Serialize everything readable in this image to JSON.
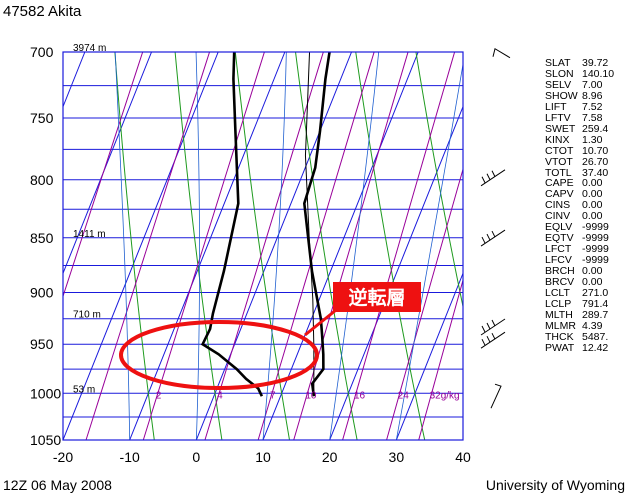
{
  "station_title": "47582  Akita",
  "footer_left": "12Z 06 May 2008",
  "footer_right": "University of Wyoming",
  "annotation_label": "逆転層",
  "colors": {
    "grid": "#1a1adc",
    "mixing_ratio": "#990099",
    "dry_adiabat": "#1e9a1e",
    "moist_adiabat": "#2060d0",
    "annotation": "#ee1111"
  },
  "chart_data": {
    "type": "line",
    "subtype": "skew-T log-P sounding",
    "y_ticks": [
      "700",
      "750",
      "800",
      "850",
      "900",
      "950",
      "1000",
      "1050"
    ],
    "x_ticks": [
      "-20",
      "-10",
      "0",
      "10",
      "20",
      "30",
      "40"
    ],
    "pressure_range_hPa": [
      1050,
      700
    ],
    "temperature_range_C": [
      -20,
      40
    ],
    "height_labels": [
      {
        "label": "3974 m",
        "pressure": 700
      },
      {
        "label": "1411 m",
        "pressure": 850
      },
      {
        "label": "710 m",
        "pressure": 925
      },
      {
        "label": "53 m",
        "pressure": 1000
      }
    ],
    "mixing_ratio_labels": [
      "2",
      "4",
      "7",
      "10",
      "16",
      "24",
      "32"
    ],
    "mixing_ratio_unit": "g/kg",
    "series": [
      {
        "key": "temperature",
        "points": [
          [
            15.0,
            1003
          ],
          [
            14.0,
            990
          ],
          [
            14.8,
            975
          ],
          [
            13.9,
            960
          ],
          [
            12.5,
            940
          ],
          [
            11.4,
            925
          ],
          [
            7.2,
            880
          ],
          [
            2.0,
            820
          ],
          [
            1.5,
            790
          ],
          [
            0.0,
            760
          ],
          [
            -2.3,
            720
          ],
          [
            -3.3,
            700
          ]
        ]
      },
      {
        "key": "dewpoint",
        "points": [
          [
            7.2,
            1003
          ],
          [
            6.2,
            995
          ],
          [
            3.8,
            985
          ],
          [
            1.8,
            975
          ],
          [
            -1.8,
            960
          ],
          [
            -4.8,
            950
          ],
          [
            -4.6,
            935
          ],
          [
            -5.1,
            920
          ],
          [
            -6.0,
            880
          ],
          [
            -7.9,
            820
          ],
          [
            -12.7,
            760
          ],
          [
            -16.1,
            720
          ],
          [
            -17.6,
            700
          ]
        ]
      },
      {
        "key": "parcel",
        "points": [
          [
            15.0,
            1003
          ],
          [
            12.0,
            952
          ],
          [
            9.0,
            906
          ],
          [
            4.8,
            850
          ],
          [
            -0.7,
            780
          ],
          [
            -6.3,
            700
          ]
        ]
      }
    ],
    "wind_barbs_pressure": [
      702,
      800,
      852,
      935,
      948,
      1003
    ],
    "indices": [
      [
        "SLAT",
        "39.72"
      ],
      [
        "SLON",
        "140.10"
      ],
      [
        "SELV",
        "7.00"
      ],
      [
        "SHOW",
        "8.96"
      ],
      [
        "LIFT",
        "7.52"
      ],
      [
        "LFTV",
        "7.58"
      ],
      [
        "SWET",
        "259.4"
      ],
      [
        "KINX",
        "1.30"
      ],
      [
        "CTOT",
        "10.70"
      ],
      [
        "VTOT",
        "26.70"
      ],
      [
        "TOTL",
        "37.40"
      ],
      [
        "CAPE",
        "0.00"
      ],
      [
        "CAPV",
        "0.00"
      ],
      [
        "CINS",
        "0.00"
      ],
      [
        "CINV",
        "0.00"
      ],
      [
        "EQLV",
        "-9999"
      ],
      [
        "EQTV",
        "-9999"
      ],
      [
        "LFCT",
        "-9999"
      ],
      [
        "LFCV",
        "-9999"
      ],
      [
        "BRCH",
        "0.00"
      ],
      [
        "BRCV",
        "0.00"
      ],
      [
        "LCLT",
        "271.0"
      ],
      [
        "LCLP",
        "791.4"
      ],
      [
        "MLTH",
        "289.7"
      ],
      [
        "MLMR",
        "4.39"
      ],
      [
        "THCK",
        "5487."
      ],
      [
        "PWAT",
        "12.42"
      ]
    ]
  }
}
